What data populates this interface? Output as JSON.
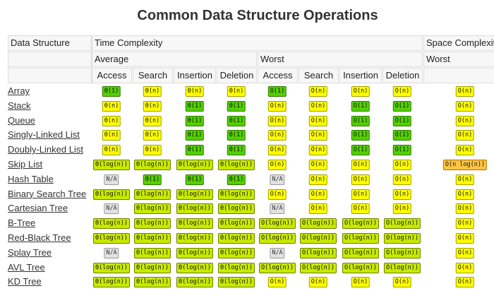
{
  "title": "Common Data Structure Operations",
  "headers": {
    "data_structure": "Data Structure",
    "time_complexity": "Time Complexity",
    "space_complexity": "Space Complexity",
    "average": "Average",
    "worst": "Worst",
    "space_worst": "Worst",
    "columns": [
      "Access",
      "Search",
      "Insertion",
      "Deletion",
      "Access",
      "Search",
      "Insertion",
      "Deletion"
    ]
  },
  "colors": {
    "green": "#53d000",
    "lightgreen": "#c8ea00",
    "yellow": "#ffff00",
    "orange": "#ffc543",
    "gray": "#e2e2e2"
  },
  "rows": [
    {
      "name": "Array",
      "link": true,
      "cells": [
        [
          "Θ(1)",
          "green"
        ],
        [
          "Θ(n)",
          "yellow"
        ],
        [
          "Θ(n)",
          "yellow"
        ],
        [
          "Θ(n)",
          "yellow"
        ],
        [
          "O(1)",
          "green"
        ],
        [
          "O(n)",
          "yellow"
        ],
        [
          "O(n)",
          "yellow"
        ],
        [
          "O(n)",
          "yellow"
        ]
      ],
      "space": [
        "O(n)",
        "yellow"
      ]
    },
    {
      "name": "Stack",
      "link": true,
      "cells": [
        [
          "Θ(n)",
          "yellow"
        ],
        [
          "Θ(n)",
          "yellow"
        ],
        [
          "Θ(1)",
          "green"
        ],
        [
          "Θ(1)",
          "green"
        ],
        [
          "O(n)",
          "yellow"
        ],
        [
          "O(n)",
          "yellow"
        ],
        [
          "O(1)",
          "green"
        ],
        [
          "O(1)",
          "green"
        ]
      ],
      "space": [
        "O(n)",
        "yellow"
      ]
    },
    {
      "name": "Queue",
      "link": true,
      "cells": [
        [
          "Θ(n)",
          "yellow"
        ],
        [
          "Θ(n)",
          "yellow"
        ],
        [
          "Θ(1)",
          "green"
        ],
        [
          "Θ(1)",
          "green"
        ],
        [
          "O(n)",
          "yellow"
        ],
        [
          "O(n)",
          "yellow"
        ],
        [
          "O(1)",
          "green"
        ],
        [
          "O(1)",
          "green"
        ]
      ],
      "space": [
        "O(n)",
        "yellow"
      ]
    },
    {
      "name": "Singly-Linked List",
      "link": true,
      "cells": [
        [
          "Θ(n)",
          "yellow"
        ],
        [
          "Θ(n)",
          "yellow"
        ],
        [
          "Θ(1)",
          "green"
        ],
        [
          "Θ(1)",
          "green"
        ],
        [
          "O(n)",
          "yellow"
        ],
        [
          "O(n)",
          "yellow"
        ],
        [
          "O(1)",
          "green"
        ],
        [
          "O(1)",
          "green"
        ]
      ],
      "space": [
        "O(n)",
        "yellow"
      ]
    },
    {
      "name": "Doubly-Linked List",
      "link": true,
      "cells": [
        [
          "Θ(n)",
          "yellow"
        ],
        [
          "Θ(n)",
          "yellow"
        ],
        [
          "Θ(1)",
          "green"
        ],
        [
          "Θ(1)",
          "green"
        ],
        [
          "O(n)",
          "yellow"
        ],
        [
          "O(n)",
          "yellow"
        ],
        [
          "O(1)",
          "green"
        ],
        [
          "O(1)",
          "green"
        ]
      ],
      "space": [
        "O(n)",
        "yellow"
      ]
    },
    {
      "name": "Skip List",
      "link": true,
      "cells": [
        [
          "Θ(log(n))",
          "lightgreen"
        ],
        [
          "Θ(log(n))",
          "lightgreen"
        ],
        [
          "Θ(log(n))",
          "lightgreen"
        ],
        [
          "Θ(log(n))",
          "lightgreen"
        ],
        [
          "O(n)",
          "yellow"
        ],
        [
          "O(n)",
          "yellow"
        ],
        [
          "O(n)",
          "yellow"
        ],
        [
          "O(n)",
          "yellow"
        ]
      ],
      "space": [
        "O(n log(n))",
        "orange"
      ]
    },
    {
      "name": "Hash Table",
      "link": false,
      "cells": [
        [
          "N/A",
          "gray"
        ],
        [
          "Θ(1)",
          "green"
        ],
        [
          "Θ(1)",
          "green"
        ],
        [
          "Θ(1)",
          "green"
        ],
        [
          "N/A",
          "gray"
        ],
        [
          "O(n)",
          "yellow"
        ],
        [
          "O(n)",
          "yellow"
        ],
        [
          "O(n)",
          "yellow"
        ]
      ],
      "space": [
        "O(n)",
        "yellow"
      ]
    },
    {
      "name": "Binary Search Tree",
      "link": true,
      "cells": [
        [
          "Θ(log(n))",
          "lightgreen"
        ],
        [
          "Θ(log(n))",
          "lightgreen"
        ],
        [
          "Θ(log(n))",
          "lightgreen"
        ],
        [
          "Θ(log(n))",
          "lightgreen"
        ],
        [
          "O(n)",
          "yellow"
        ],
        [
          "O(n)",
          "yellow"
        ],
        [
          "O(n)",
          "yellow"
        ],
        [
          "O(n)",
          "yellow"
        ]
      ],
      "space": [
        "O(n)",
        "yellow"
      ]
    },
    {
      "name": "Cartesian Tree",
      "link": true,
      "cells": [
        [
          "N/A",
          "gray"
        ],
        [
          "Θ(log(n))",
          "lightgreen"
        ],
        [
          "Θ(log(n))",
          "lightgreen"
        ],
        [
          "Θ(log(n))",
          "lightgreen"
        ],
        [
          "N/A",
          "gray"
        ],
        [
          "O(n)",
          "yellow"
        ],
        [
          "O(n)",
          "yellow"
        ],
        [
          "O(n)",
          "yellow"
        ]
      ],
      "space": [
        "O(n)",
        "yellow"
      ]
    },
    {
      "name": "B-Tree",
      "link": true,
      "cells": [
        [
          "Θ(log(n))",
          "lightgreen"
        ],
        [
          "Θ(log(n))",
          "lightgreen"
        ],
        [
          "Θ(log(n))",
          "lightgreen"
        ],
        [
          "Θ(log(n))",
          "lightgreen"
        ],
        [
          "O(log(n))",
          "lightgreen"
        ],
        [
          "O(log(n))",
          "lightgreen"
        ],
        [
          "O(log(n))",
          "lightgreen"
        ],
        [
          "O(log(n))",
          "lightgreen"
        ]
      ],
      "space": [
        "O(n)",
        "yellow"
      ]
    },
    {
      "name": "Red-Black Tree",
      "link": true,
      "cells": [
        [
          "Θ(log(n))",
          "lightgreen"
        ],
        [
          "Θ(log(n))",
          "lightgreen"
        ],
        [
          "Θ(log(n))",
          "lightgreen"
        ],
        [
          "Θ(log(n))",
          "lightgreen"
        ],
        [
          "O(log(n))",
          "lightgreen"
        ],
        [
          "O(log(n))",
          "lightgreen"
        ],
        [
          "O(log(n))",
          "lightgreen"
        ],
        [
          "O(log(n))",
          "lightgreen"
        ]
      ],
      "space": [
        "O(n)",
        "yellow"
      ]
    },
    {
      "name": "Splay Tree",
      "link": true,
      "cells": [
        [
          "N/A",
          "gray"
        ],
        [
          "Θ(log(n))",
          "lightgreen"
        ],
        [
          "Θ(log(n))",
          "lightgreen"
        ],
        [
          "Θ(log(n))",
          "lightgreen"
        ],
        [
          "N/A",
          "gray"
        ],
        [
          "O(log(n))",
          "lightgreen"
        ],
        [
          "O(log(n))",
          "lightgreen"
        ],
        [
          "O(log(n))",
          "lightgreen"
        ]
      ],
      "space": [
        "O(n)",
        "yellow"
      ]
    },
    {
      "name": "AVL Tree",
      "link": true,
      "cells": [
        [
          "Θ(log(n))",
          "lightgreen"
        ],
        [
          "Θ(log(n))",
          "lightgreen"
        ],
        [
          "Θ(log(n))",
          "lightgreen"
        ],
        [
          "Θ(log(n))",
          "lightgreen"
        ],
        [
          "O(log(n))",
          "lightgreen"
        ],
        [
          "O(log(n))",
          "lightgreen"
        ],
        [
          "O(log(n))",
          "lightgreen"
        ],
        [
          "O(log(n))",
          "lightgreen"
        ]
      ],
      "space": [
        "O(n)",
        "yellow"
      ]
    },
    {
      "name": "KD Tree",
      "link": true,
      "cells": [
        [
          "Θ(log(n))",
          "lightgreen"
        ],
        [
          "Θ(log(n))",
          "lightgreen"
        ],
        [
          "Θ(log(n))",
          "lightgreen"
        ],
        [
          "Θ(log(n))",
          "lightgreen"
        ],
        [
          "O(n)",
          "yellow"
        ],
        [
          "O(n)",
          "yellow"
        ],
        [
          "O(n)",
          "yellow"
        ],
        [
          "O(n)",
          "yellow"
        ]
      ],
      "space": [
        "O(n)",
        "yellow"
      ]
    }
  ]
}
